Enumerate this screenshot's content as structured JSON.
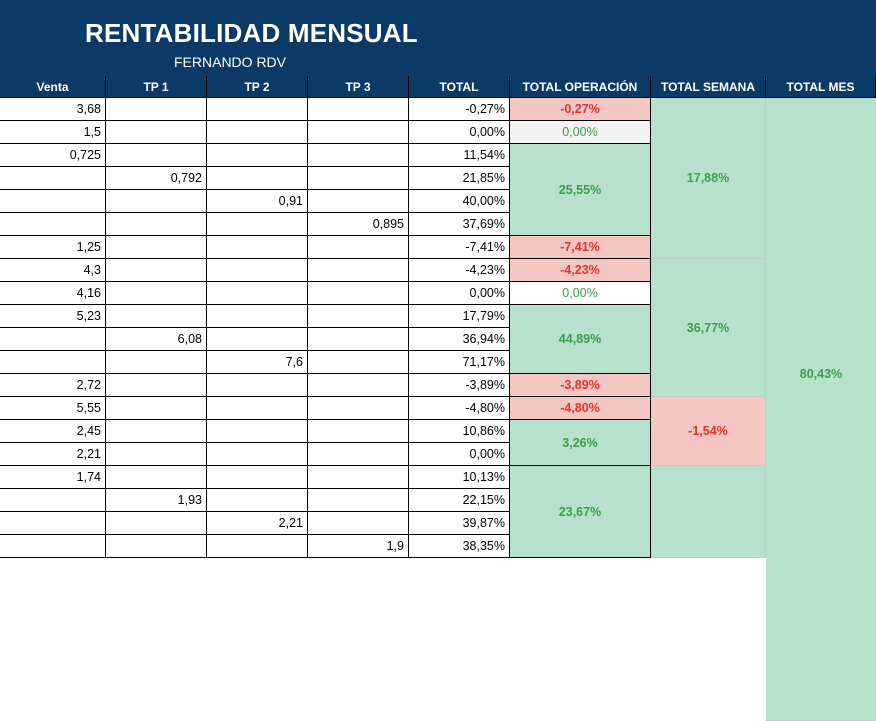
{
  "header": {
    "title": "RENTABILIDAD MENSUAL",
    "subtitle": "FERNANDO RDV"
  },
  "columns": [
    "Venta",
    "TP 1",
    "TP 2",
    "TP 3",
    "TOTAL",
    "TOTAL OPERACIÓN",
    "TOTAL SEMANA",
    "TOTAL MES"
  ],
  "rows": [
    {
      "venta": "3,68",
      "tp1": "",
      "tp2": "",
      "tp3": "",
      "total": "-0,27%"
    },
    {
      "venta": "1,5",
      "tp1": "",
      "tp2": "",
      "tp3": "",
      "total": "0,00%"
    },
    {
      "venta": "0,725",
      "tp1": "",
      "tp2": "",
      "tp3": "",
      "total": "11,54%"
    },
    {
      "venta": "",
      "tp1": "0,792",
      "tp2": "",
      "tp3": "",
      "total": "21,85%"
    },
    {
      "venta": "",
      "tp1": "",
      "tp2": "0,91",
      "tp3": "",
      "total": "40,00%"
    },
    {
      "venta": "",
      "tp1": "",
      "tp2": "",
      "tp3": "0,895",
      "total": "37,69%"
    },
    {
      "venta": "1,25",
      "tp1": "",
      "tp2": "",
      "tp3": "",
      "total": "-7,41%"
    },
    {
      "venta": "4,3",
      "tp1": "",
      "tp2": "",
      "tp3": "",
      "total": "-4,23%"
    },
    {
      "venta": "4,16",
      "tp1": "",
      "tp2": "",
      "tp3": "",
      "total": "0,00%"
    },
    {
      "venta": "5,23",
      "tp1": "",
      "tp2": "",
      "tp3": "",
      "total": "17,79%"
    },
    {
      "venta": "",
      "tp1": "6,08",
      "tp2": "",
      "tp3": "",
      "total": "36,94%"
    },
    {
      "venta": "",
      "tp1": "",
      "tp2": "7,6",
      "tp3": "",
      "total": "71,17%"
    },
    {
      "venta": "2,72",
      "tp1": "",
      "tp2": "",
      "tp3": "",
      "total": "-3,89%"
    },
    {
      "venta": "5,55",
      "tp1": "",
      "tp2": "",
      "tp3": "",
      "total": "-4,80%"
    },
    {
      "venta": "2,45",
      "tp1": "",
      "tp2": "",
      "tp3": "",
      "total": "10,86%"
    },
    {
      "venta": "2,21",
      "tp1": "",
      "tp2": "",
      "tp3": "",
      "total": "0,00%"
    },
    {
      "venta": "1,74",
      "tp1": "",
      "tp2": "",
      "tp3": "",
      "total": "10,13%"
    },
    {
      "venta": "",
      "tp1": "1,93",
      "tp2": "",
      "tp3": "",
      "total": "22,15%"
    },
    {
      "venta": "",
      "tp1": "",
      "tp2": "2,21",
      "tp3": "",
      "total": "39,87%"
    },
    {
      "venta": "",
      "tp1": "",
      "tp2": "",
      "tp3": "1,9",
      "total": "38,35%"
    }
  ],
  "operations": [
    {
      "start": 0,
      "span": 1,
      "value": "-0,27%",
      "kind": "neg"
    },
    {
      "start": 1,
      "span": 1,
      "value": "0,00%",
      "kind": "zer"
    },
    {
      "start": 2,
      "span": 4,
      "value": "25,55%",
      "kind": "pos"
    },
    {
      "start": 6,
      "span": 1,
      "value": "-7,41%",
      "kind": "neg"
    },
    {
      "start": 7,
      "span": 1,
      "value": "-4,23%",
      "kind": "neg"
    },
    {
      "start": 8,
      "span": 1,
      "value": "0,00%",
      "kind": "zer2"
    },
    {
      "start": 9,
      "span": 3,
      "value": "44,89%",
      "kind": "pos"
    },
    {
      "start": 12,
      "span": 1,
      "value": "-3,89%",
      "kind": "neg"
    },
    {
      "start": 13,
      "span": 1,
      "value": "-4,80%",
      "kind": "neg"
    },
    {
      "start": 14,
      "span": 2,
      "value": "3,26%",
      "kind": "pos"
    },
    {
      "start": 16,
      "span": 4,
      "value": "23,67%",
      "kind": "pos"
    }
  ],
  "weeks": [
    {
      "start": 0,
      "span": 7,
      "value": "17,88%",
      "kind": "pos"
    },
    {
      "start": 7,
      "span": 6,
      "value": "36,77%",
      "kind": "pos"
    },
    {
      "start": 13,
      "span": 3,
      "value": "-1,54%",
      "kind": "neg"
    },
    {
      "start": 16,
      "span": 4,
      "value": "",
      "kind": "pos"
    }
  ],
  "month": {
    "value": "80,43%",
    "kind": "pos"
  },
  "colors": {
    "header_bg": "#0c3a66",
    "negative_bg": "#f4c7c3",
    "negative_text": "#e5322d",
    "positive_bg": "#b7e1cd",
    "positive_text": "#3aa14a"
  }
}
